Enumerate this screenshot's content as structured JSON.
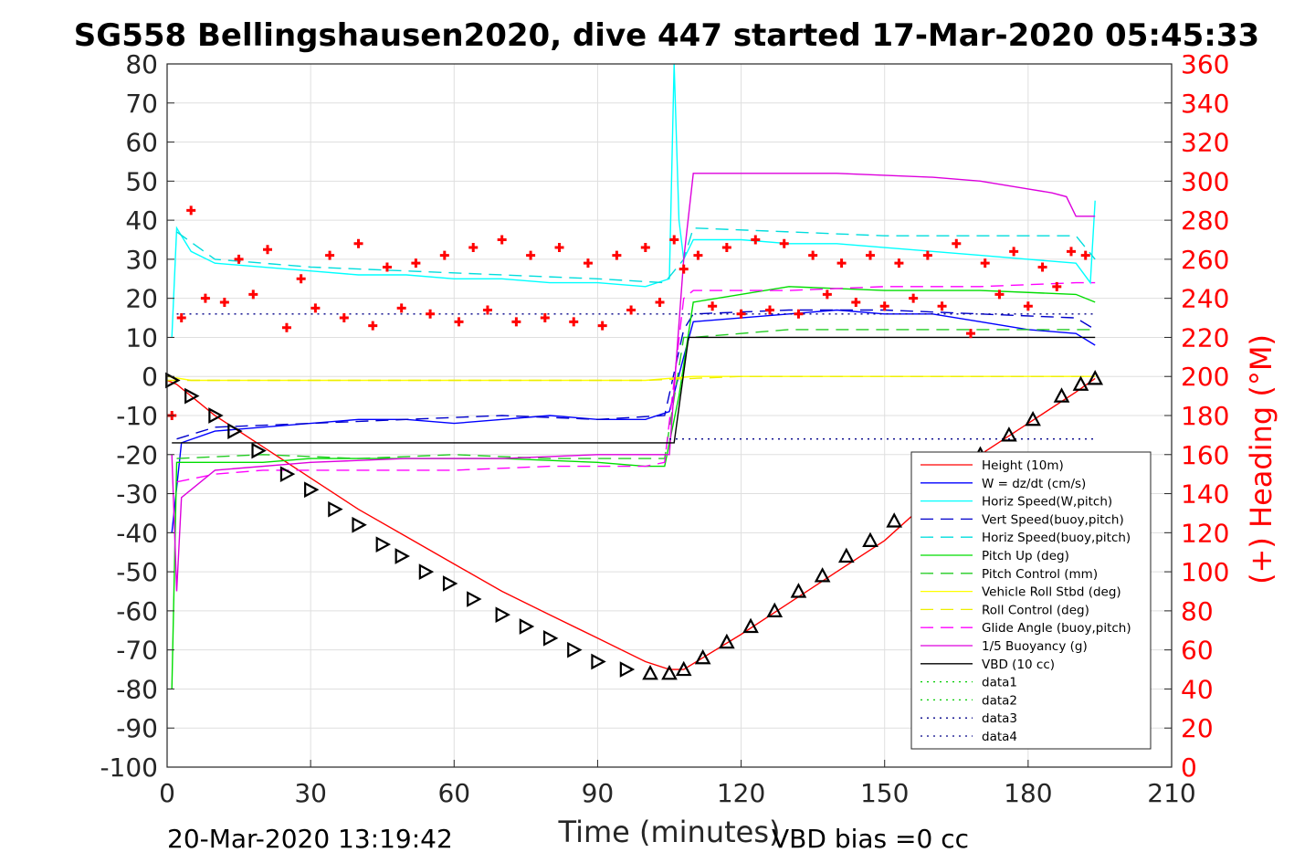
{
  "chart_data": {
    "type": "line",
    "title": "SG558 Bellingshausen2020, dive 447 started 17-Mar-2020 05:45:33",
    "xlabel": "Time (minutes)",
    "ylabel_right": "(+) Heading (°M)",
    "xlim": [
      0,
      210
    ],
    "ylim_left": [
      -100,
      80
    ],
    "ylim_right": [
      0,
      360
    ],
    "x_ticks": [
      "0",
      "30",
      "60",
      "90",
      "120",
      "150",
      "180",
      "210"
    ],
    "y_ticks_left": [
      "80",
      "70",
      "60",
      "50",
      "40",
      "30",
      "20",
      "10",
      "0",
      "-10",
      "-20",
      "-30",
      "-40",
      "-50",
      "-60",
      "-70",
      "-80",
      "-90",
      "-100"
    ],
    "y_ticks_right": [
      "360",
      "340",
      "320",
      "300",
      "280",
      "260",
      "240",
      "220",
      "200",
      "180",
      "160",
      "140",
      "120",
      "100",
      "80",
      "60",
      "40",
      "20",
      "0"
    ],
    "grid": true,
    "legend_position": "bottom-right",
    "footer_left": "20-Mar-2020 13:19:42",
    "footer_right": "VBD bias =0 cc",
    "series": [
      {
        "name": "Height (10m)",
        "color": "#ff0000",
        "style": "solid",
        "x": [
          0,
          2,
          10,
          20,
          30,
          40,
          50,
          60,
          70,
          80,
          90,
          100,
          105,
          108,
          112,
          120,
          130,
          140,
          150,
          160,
          170,
          180,
          190,
          194
        ],
        "y": [
          -1,
          -2,
          -10,
          -18,
          -26,
          -34,
          -41,
          -48,
          -55,
          -61,
          -67,
          -73,
          -75,
          -75,
          -72,
          -66,
          -58,
          -50,
          -42,
          -31,
          -20,
          -12,
          -4,
          -0.5
        ]
      },
      {
        "name": "W = dz/dt (cm/s)",
        "color": "#0000ff",
        "style": "solid",
        "x": [
          1,
          3,
          10,
          20,
          30,
          40,
          50,
          60,
          70,
          80,
          90,
          100,
          105,
          108,
          110,
          120,
          130,
          140,
          150,
          160,
          170,
          180,
          190,
          194
        ],
        "y": [
          -40,
          -17,
          -14,
          -13,
          -12,
          -11,
          -11,
          -12,
          -11,
          -10,
          -11,
          -11,
          -9,
          5,
          14,
          15,
          16,
          17,
          16,
          16,
          14,
          12,
          11,
          8
        ]
      },
      {
        "name": "Horiz Speed(W,pitch)",
        "color": "#00ffff",
        "style": "solid",
        "x": [
          1,
          2,
          5,
          10,
          20,
          30,
          40,
          50,
          60,
          70,
          80,
          90,
          100,
          105,
          106,
          107,
          108,
          110,
          120,
          130,
          140,
          150,
          160,
          170,
          180,
          190,
          193,
          194
        ],
        "y": [
          10,
          38,
          32,
          29,
          28,
          27,
          26,
          26,
          25,
          25,
          24,
          24,
          23,
          25,
          80,
          40,
          30,
          35,
          35,
          34,
          34,
          33,
          32,
          31,
          30,
          29,
          24,
          45
        ]
      },
      {
        "name": "Vert Speed(buoy,pitch)",
        "color": "#0000cc",
        "style": "dash",
        "x": [
          2,
          10,
          30,
          50,
          70,
          90,
          104,
          108,
          110,
          130,
          150,
          170,
          190,
          194
        ],
        "y": [
          -16,
          -13,
          -12,
          -11,
          -10,
          -11,
          -10,
          12,
          16,
          17,
          17,
          16,
          15,
          12
        ]
      },
      {
        "name": "Horiz Speed(buoy,pitch)",
        "color": "#00dddd",
        "style": "dash",
        "x": [
          2,
          10,
          30,
          50,
          70,
          90,
          104,
          108,
          110,
          130,
          150,
          170,
          190,
          194
        ],
        "y": [
          37,
          30,
          28,
          27,
          26,
          25,
          24,
          30,
          38,
          37,
          36,
          36,
          36,
          30
        ]
      },
      {
        "name": "Pitch Up (deg)",
        "color": "#00dd00",
        "style": "solid",
        "x": [
          1,
          2,
          5,
          20,
          30,
          50,
          70,
          90,
          100,
          104,
          107,
          110,
          130,
          150,
          170,
          190,
          194
        ],
        "y": [
          -80,
          -22,
          -22,
          -22,
          -21,
          -21,
          -21,
          -22,
          -23,
          -23,
          -5,
          19,
          23,
          22,
          22,
          21,
          19
        ]
      },
      {
        "name": "Pitch Control (mm)",
        "color": "#22cc22",
        "style": "dash",
        "x": [
          2,
          20,
          40,
          60,
          80,
          100,
          104,
          108,
          110,
          130,
          150,
          170,
          190,
          194
        ],
        "y": [
          -21,
          -20,
          -21,
          -20,
          -21,
          -21,
          -21,
          10,
          10,
          12,
          12,
          12,
          12,
          12
        ]
      },
      {
        "name": "Vehicle Roll Stbd (deg)",
        "color": "#ffff00",
        "style": "solid",
        "x": [
          0,
          5,
          10,
          20,
          40,
          60,
          80,
          100,
          110,
          130,
          150,
          170,
          190,
          194
        ],
        "y": [
          0,
          -1,
          -1,
          -1,
          -1,
          -1,
          -1,
          -1,
          0,
          0,
          0,
          0,
          0,
          0
        ]
      },
      {
        "name": "Roll Control (deg)",
        "color": "#eeee00",
        "style": "dash",
        "x": [
          0,
          20,
          40,
          60,
          80,
          100,
          120,
          140,
          160,
          180,
          194
        ],
        "y": [
          -1,
          -1,
          -1,
          -1,
          -1,
          -1,
          0,
          0,
          0,
          0,
          0
        ]
      },
      {
        "name": "Glide Angle (buoy,pitch)",
        "color": "#ff00ff",
        "style": "dash",
        "x": [
          2,
          10,
          20,
          40,
          60,
          80,
          100,
          104,
          108,
          110,
          130,
          150,
          170,
          190,
          194
        ],
        "y": [
          -27,
          -25,
          -24,
          -24,
          -24,
          -23,
          -23,
          -22,
          20,
          22,
          22,
          23,
          23,
          24,
          24
        ]
      },
      {
        "name": "1/5 Buoyancy (g)",
        "color": "#dd00dd",
        "style": "solid",
        "x": [
          1,
          2,
          3,
          10,
          30,
          50,
          70,
          90,
          100,
          104,
          105,
          108,
          110,
          120,
          140,
          160,
          170,
          180,
          185,
          188,
          190,
          194
        ],
        "y": [
          -20,
          -55,
          -31,
          -24,
          -22,
          -21,
          -21,
          -20,
          -20,
          -20,
          -20,
          30,
          52,
          52,
          52,
          51,
          50,
          48,
          47,
          46,
          41,
          41
        ]
      },
      {
        "name": "VBD (10 cc)",
        "color": "#000000",
        "style": "solid",
        "x": [
          1,
          2,
          104,
          106,
          109,
          194
        ],
        "y": [
          -17,
          -17,
          -17,
          -17,
          10,
          10
        ]
      },
      {
        "name": "data1",
        "color": "#00cc00",
        "style": "dot",
        "x": [],
        "y": []
      },
      {
        "name": "data2",
        "color": "#00cc00",
        "style": "dot",
        "x": [],
        "y": []
      },
      {
        "name": "data3",
        "color": "#000088",
        "style": "dot",
        "x": [
          2,
          194
        ],
        "y": [
          16,
          16
        ]
      },
      {
        "name": "data4",
        "color": "#000088",
        "style": "dot",
        "x": [
          105,
          194
        ],
        "y": [
          -16,
          -16
        ]
      }
    ],
    "heading_markers": {
      "color": "#ff0000",
      "axis": "right",
      "x": [
        1,
        3,
        5,
        8,
        12,
        15,
        18,
        21,
        25,
        28,
        31,
        34,
        37,
        40,
        43,
        46,
        49,
        52,
        55,
        58,
        61,
        64,
        67,
        70,
        73,
        76,
        79,
        82,
        85,
        88,
        91,
        94,
        97,
        100,
        103,
        106,
        108,
        111,
        114,
        117,
        120,
        123,
        126,
        129,
        132,
        135,
        138,
        141,
        144,
        147,
        150,
        153,
        156,
        159,
        162,
        165,
        168,
        171,
        174,
        177,
        180,
        183,
        186,
        189,
        192
      ],
      "y": [
        180,
        230,
        285,
        240,
        238,
        260,
        242,
        265,
        225,
        250,
        235,
        262,
        230,
        268,
        226,
        256,
        235,
        258,
        232,
        262,
        228,
        266,
        234,
        270,
        228,
        262,
        230,
        266,
        228,
        258,
        226,
        262,
        234,
        266,
        238,
        270,
        255,
        262,
        236,
        266,
        232,
        270,
        234,
        268,
        232,
        262,
        242,
        258,
        238,
        262,
        236,
        258,
        240,
        262,
        236,
        268,
        222,
        258,
        242,
        264,
        236,
        256,
        246,
        264,
        262
      ]
    },
    "waypoints": {
      "color": "#000000",
      "x": [
        1,
        5,
        10,
        14,
        19,
        25,
        30,
        35,
        40,
        45,
        49,
        54,
        59,
        64,
        70,
        75,
        80,
        85,
        90,
        96,
        101,
        105,
        108,
        112,
        117,
        122,
        127,
        132,
        137,
        142,
        147,
        152,
        158,
        164,
        170,
        176,
        181,
        187,
        191,
        194
      ],
      "y": [
        -1,
        -5,
        -10,
        -14,
        -19,
        -25,
        -29,
        -34,
        -38,
        -43,
        -46,
        -50,
        -53,
        -57,
        -61,
        -64,
        -67,
        -70,
        -73,
        -75,
        -76,
        -76,
        -75,
        -72,
        -68,
        -64,
        -60,
        -55,
        -51,
        -46,
        -42,
        -37,
        -32,
        -26,
        -20,
        -15,
        -11,
        -5,
        -2,
        -0.5
      ]
    }
  }
}
